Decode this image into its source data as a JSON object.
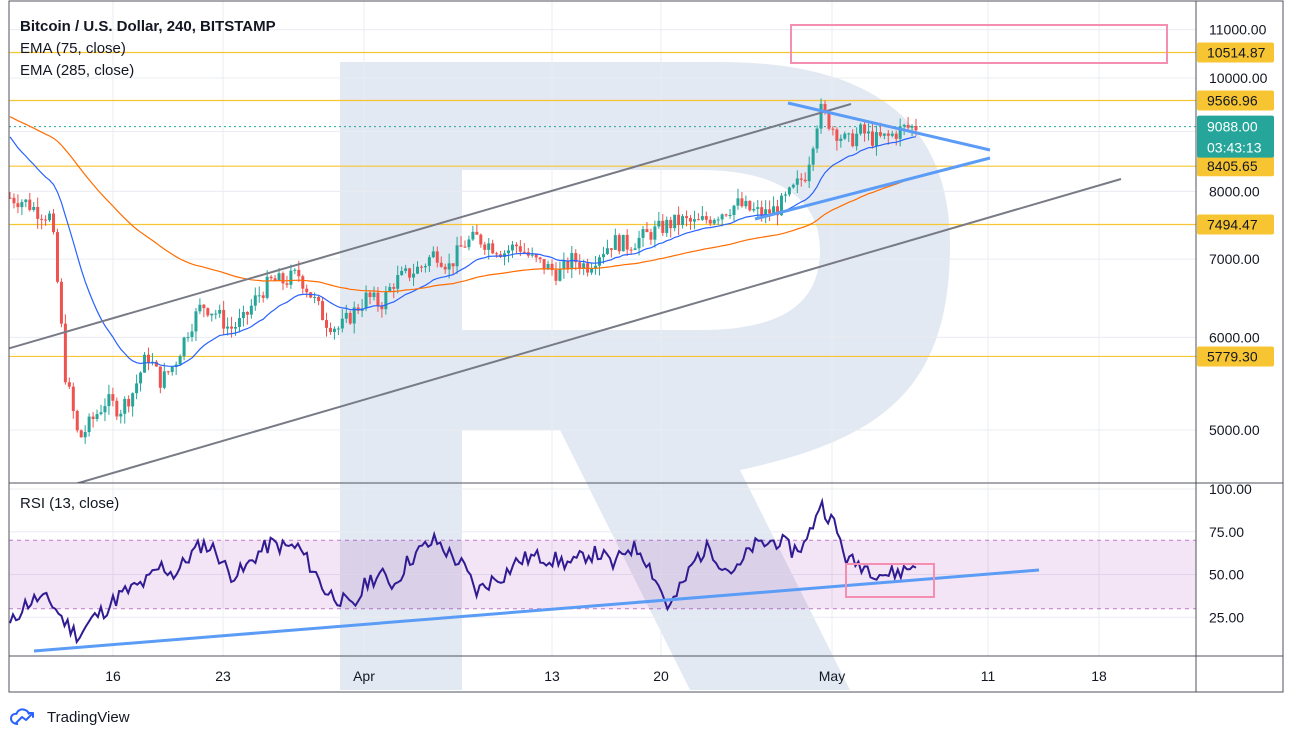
{
  "header": {
    "title": "Bitcoin / U.S. Dollar, 240, BITSTAMP",
    "indicator_1": "EMA (75, close)",
    "indicator_2": "EMA (285, close)"
  },
  "rsi_panel": {
    "label": "RSI (13, close)"
  },
  "branding": {
    "name": "TradingView"
  },
  "chart_data": [
    {
      "type": "candlestick",
      "title": "Bitcoin / U.S. Dollar, 240, BITSTAMP",
      "y_scale": "log",
      "ylim": [
        4400,
        11200
      ],
      "y_ticks": [
        "11000.00",
        "10000.00",
        "9000.00",
        "8000.00",
        "7000.00",
        "6000.00",
        "5000.00"
      ],
      "x_ticks": [
        "16",
        "23",
        "Apr",
        "13",
        "20",
        "May",
        "11",
        "18"
      ],
      "price_levels": [
        {
          "value": 10514.87,
          "label": "10514.87",
          "color": "#f7c531"
        },
        {
          "value": 9566.96,
          "label": "9566.96",
          "color": "#f7c531"
        },
        {
          "value": 8405.65,
          "label": "8405.65",
          "color": "#f7c531"
        },
        {
          "value": 7494.47,
          "label": "7494.47",
          "color": "#f7c531"
        },
        {
          "value": 5779.3,
          "label": "5779.30",
          "color": "#f7c531"
        }
      ],
      "last_price": {
        "value": 9088.0,
        "label": "9088.00",
        "countdown": "03:43:13",
        "color": "#26a69a"
      },
      "ema_75_color": "#2962ff",
      "ema_285_color": "#ff6d00",
      "up_color": "#26a69a",
      "down_color": "#ef5350",
      "approx_closes": [
        7900,
        7850,
        7700,
        7600,
        5600,
        4900,
        5100,
        5300,
        5200,
        5400,
        5800,
        5500,
        5700,
        6100,
        6400,
        6300,
        6100,
        6200,
        6500,
        6700,
        6700,
        6800,
        6500,
        6200,
        6100,
        6300,
        6500,
        6400,
        6700,
        6800,
        6900,
        7100,
        6900,
        7200,
        7300,
        7200,
        7100,
        7200,
        7000,
        6900,
        6800,
        7000,
        6900,
        7100,
        7250,
        7200,
        7300,
        7400,
        7500,
        7550,
        7500,
        7600,
        7700,
        7800,
        7700,
        7650,
        7750,
        8000,
        8300,
        9400,
        9050,
        8800,
        9000,
        8850,
        8900,
        9050,
        9088
      ]
    },
    {
      "type": "line",
      "title": "RSI (13, close)",
      "ylim": [
        0,
        100
      ],
      "y_ticks": [
        "100.00",
        "75.00",
        "50.00",
        "25.00"
      ],
      "band": [
        30,
        70
      ],
      "line_color": "#311b92",
      "band_color": "#9c27b0",
      "approx_values": [
        20,
        32,
        36,
        34,
        22,
        14,
        24,
        30,
        38,
        42,
        46,
        55,
        50,
        60,
        68,
        64,
        50,
        52,
        62,
        68,
        66,
        66,
        54,
        40,
        36,
        30,
        46,
        50,
        44,
        58,
        65,
        70,
        62,
        55,
        40,
        46,
        50,
        58,
        60,
        60,
        58,
        56,
        62,
        62,
        55,
        66,
        64,
        48,
        30,
        44,
        60,
        66,
        54,
        52,
        66,
        68,
        70,
        64,
        68,
        92,
        80,
        58,
        56,
        52,
        50,
        52,
        56
      ]
    }
  ],
  "drawings": {
    "channel_color": "#787b86",
    "trendline_color": "#5b9cf6",
    "target_box_color": "#f48fb1"
  }
}
